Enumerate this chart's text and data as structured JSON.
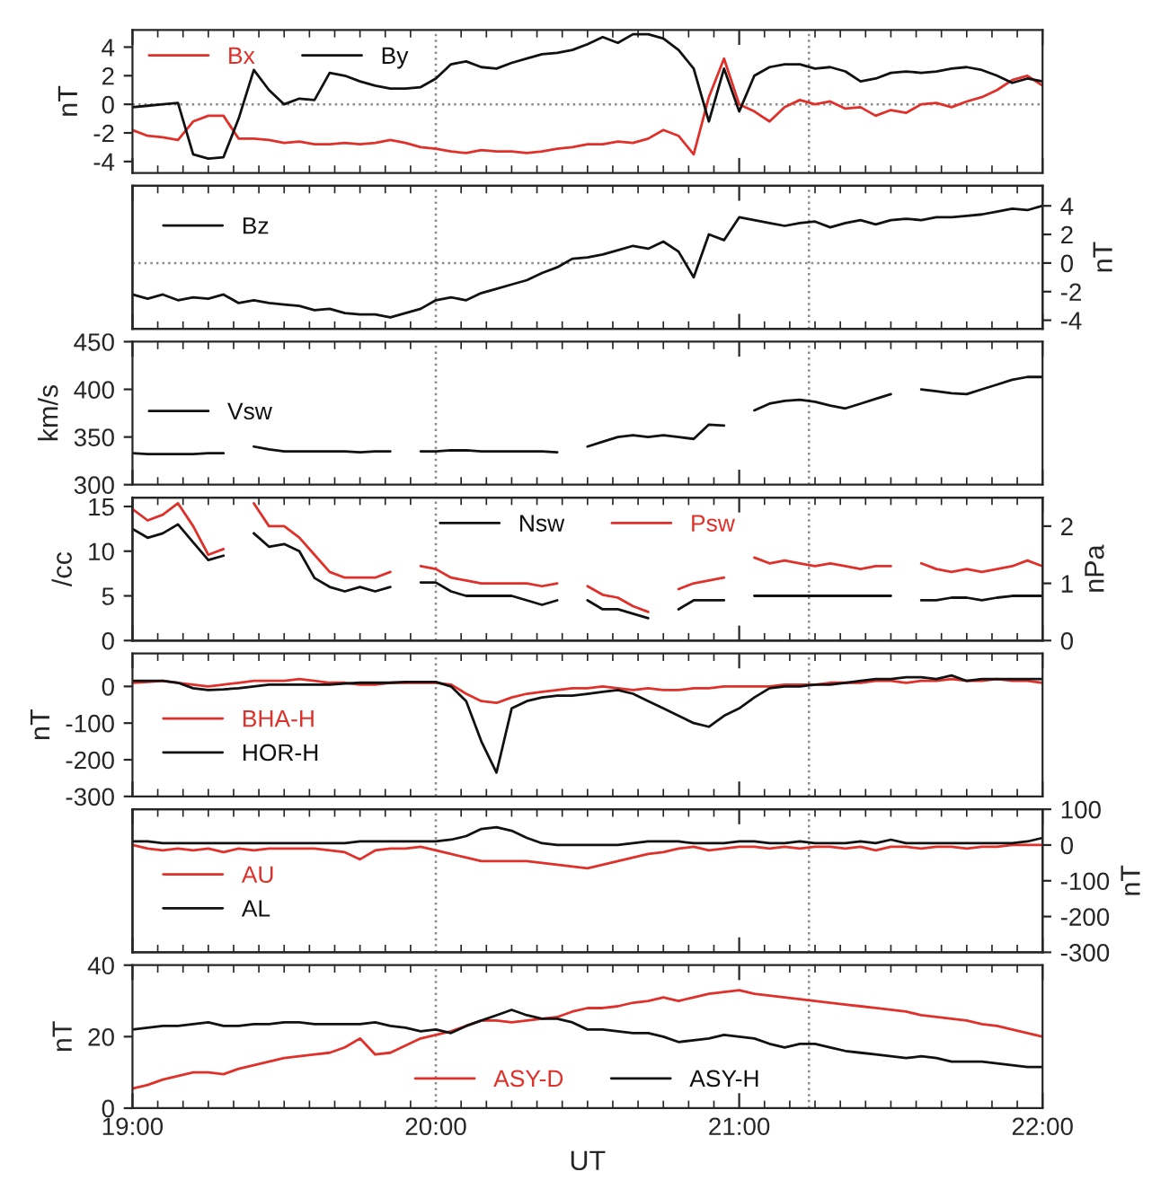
{
  "chart_data": [
    {
      "type": "line",
      "ylabel": "nT",
      "ylim": [
        -4.8,
        5.2
      ],
      "yticks": [
        -4,
        -2,
        0,
        2,
        4
      ],
      "xlim": [
        19,
        22
      ],
      "xticks": [
        {
          "value": 19,
          "label": null
        },
        {
          "value": 20,
          "label": null
        },
        {
          "value": 21,
          "label": null
        },
        {
          "value": 22,
          "label": null
        }
      ],
      "tick_labels": "y",
      "legend": "top left",
      "x": [
        19,
        19.05,
        19.1,
        19.15,
        19.2,
        19.25,
        19.3,
        19.35,
        19.4,
        19.45,
        19.5,
        19.55,
        19.6,
        19.65,
        19.7,
        19.75,
        19.8,
        19.85,
        19.9,
        19.95,
        20,
        20.05,
        20.1,
        20.15,
        20.2,
        20.25,
        20.3,
        20.35,
        20.4,
        20.45,
        20.5,
        20.55,
        20.6,
        20.65,
        20.7,
        20.75,
        20.8,
        20.85,
        20.9,
        20.95,
        21,
        21.05,
        21.1,
        21.15,
        21.2,
        21.25,
        21.3,
        21.35,
        21.4,
        21.45,
        21.5,
        21.55,
        21.6,
        21.65,
        21.7,
        21.75,
        21.8,
        21.85,
        21.9,
        21.95,
        22
      ],
      "series": [
        {
          "name": "Bx",
          "color": "#e0302a",
          "values": [
            -1.8,
            -2.2,
            -2.3,
            -2.5,
            -1.2,
            -0.8,
            -0.8,
            -2.4,
            -2.4,
            -2.5,
            -2.7,
            -2.6,
            -2.8,
            -2.8,
            -2.7,
            -2.8,
            -2.7,
            -2.5,
            -2.7,
            -3.0,
            -3.1,
            -3.3,
            -3.4,
            -3.2,
            -3.3,
            -3.3,
            -3.4,
            -3.3,
            -3.1,
            -3.0,
            -2.8,
            -2.8,
            -2.6,
            -2.7,
            -2.4,
            -1.8,
            -2.2,
            -3.5,
            0.5,
            3.2,
            0,
            -0.5,
            -1.2,
            -0.2,
            0.3,
            0,
            0.2,
            -0.3,
            -0.2,
            -0.8,
            -0.4,
            -0.6,
            0,
            0.1,
            -0.2,
            0.2,
            0.5,
            1.0,
            1.7,
            2.0,
            1.3
          ]
        },
        {
          "name": "By",
          "color": "#111111",
          "values": [
            -0.2,
            -0.1,
            0,
            0.1,
            -3.5,
            -3.8,
            -3.7,
            -1.0,
            2.4,
            1.0,
            0,
            0.4,
            0.3,
            2.2,
            2.0,
            1.6,
            1.3,
            1.1,
            1.1,
            1.2,
            1.8,
            2.8,
            3.0,
            2.6,
            2.5,
            2.9,
            3.2,
            3.5,
            3.6,
            3.8,
            4.2,
            4.7,
            4.3,
            4.9,
            4.9,
            4.6,
            3.8,
            2.5,
            -1.2,
            2.5,
            -0.5,
            2.0,
            2.6,
            2.8,
            2.8,
            2.5,
            2.6,
            2.3,
            1.6,
            1.8,
            2.2,
            2.3,
            2.2,
            2.3,
            2.5,
            2.6,
            2.4,
            2.0,
            1.5,
            1.8,
            1.6
          ]
        }
      ],
      "ref_lines": [
        {
          "axis": "x",
          "value": 20,
          "color": "#8a8a8a",
          "line_style": "dotted"
        },
        {
          "axis": "x",
          "value": 21.23,
          "color": "#8a8a8a",
          "line_style": "dotted"
        },
        {
          "axis": "y",
          "value": 0,
          "color": "#8a8a8a",
          "line_style": "dotted"
        }
      ]
    },
    {
      "type": "line",
      "y2label": "nT",
      "y2lim": [
        -4.6,
        5.4
      ],
      "y2ticks": [
        -4,
        -2,
        0,
        2,
        4
      ],
      "xlim": [
        19,
        22
      ],
      "xticks": [
        {
          "value": 19,
          "label": null
        },
        {
          "value": 20,
          "label": null
        },
        {
          "value": 21,
          "label": null
        },
        {
          "value": 22,
          "label": null
        }
      ],
      "tick_labels": "y",
      "legend": "top left",
      "x": [
        19,
        19.05,
        19.1,
        19.15,
        19.2,
        19.25,
        19.3,
        19.35,
        19.4,
        19.45,
        19.5,
        19.55,
        19.6,
        19.65,
        19.7,
        19.75,
        19.8,
        19.85,
        19.9,
        19.95,
        20,
        20.05,
        20.1,
        20.15,
        20.2,
        20.25,
        20.3,
        20.35,
        20.4,
        20.45,
        20.5,
        20.55,
        20.6,
        20.65,
        20.7,
        20.75,
        20.8,
        20.85,
        20.9,
        20.95,
        21,
        21.05,
        21.1,
        21.15,
        21.2,
        21.25,
        21.3,
        21.35,
        21.4,
        21.45,
        21.5,
        21.55,
        21.6,
        21.65,
        21.7,
        21.75,
        21.8,
        21.85,
        21.9,
        21.95,
        22
      ],
      "series": [
        {
          "name": "Bz",
          "color": "#111111",
          "axis": "y2",
          "values": [
            -2.2,
            -2.5,
            -2.2,
            -2.6,
            -2.4,
            -2.5,
            -2.2,
            -2.8,
            -2.6,
            -2.8,
            -2.9,
            -3.0,
            -3.3,
            -3.2,
            -3.5,
            -3.6,
            -3.6,
            -3.8,
            -3.5,
            -3.2,
            -2.6,
            -2.4,
            -2.6,
            -2.1,
            -1.8,
            -1.5,
            -1.2,
            -0.7,
            -0.3,
            0.3,
            0.4,
            0.6,
            0.9,
            1.2,
            1.0,
            1.5,
            0.8,
            -1.0,
            2.0,
            1.6,
            3.2,
            3.0,
            2.8,
            2.6,
            2.8,
            2.9,
            2.5,
            2.8,
            3.0,
            2.7,
            3.0,
            3.1,
            3.0,
            3.2,
            3.2,
            3.3,
            3.4,
            3.6,
            3.8,
            3.7,
            4.0
          ]
        }
      ],
      "ref_lines": [
        {
          "axis": "x",
          "value": 20,
          "color": "#8a8a8a",
          "line_style": "dotted"
        },
        {
          "axis": "x",
          "value": 21.23,
          "color": "#8a8a8a",
          "line_style": "dotted"
        },
        {
          "axis": "y2",
          "value": 0,
          "color": "#8a8a8a",
          "line_style": "dotted"
        }
      ]
    },
    {
      "type": "line",
      "ylabel": "km/s",
      "ylim": [
        300,
        450
      ],
      "yticks": [
        300,
        350,
        400,
        450
      ],
      "xlim": [
        19,
        22
      ],
      "xticks": [
        {
          "value": 19,
          "label": null
        },
        {
          "value": 20,
          "label": null
        },
        {
          "value": 21,
          "label": null
        },
        {
          "value": 22,
          "label": null
        }
      ],
      "tick_labels": "y",
      "legend": "left",
      "x": [
        19,
        19.05,
        19.1,
        19.15,
        19.2,
        19.25,
        19.3,
        19.35,
        19.4,
        19.45,
        19.5,
        19.55,
        19.6,
        19.65,
        19.7,
        19.75,
        19.8,
        19.85,
        19.9,
        19.95,
        20,
        20.05,
        20.1,
        20.15,
        20.2,
        20.25,
        20.3,
        20.35,
        20.4,
        20.45,
        20.5,
        20.55,
        20.6,
        20.65,
        20.7,
        20.75,
        20.8,
        20.85,
        20.9,
        20.95,
        21,
        21.05,
        21.1,
        21.15,
        21.2,
        21.25,
        21.3,
        21.35,
        21.4,
        21.45,
        21.5,
        21.55,
        21.6,
        21.65,
        21.7,
        21.75,
        21.8,
        21.85,
        21.9,
        21.95,
        22
      ],
      "series": [
        {
          "name": "Vsw",
          "color": "#111111",
          "values": [
            333,
            332,
            332,
            332,
            332,
            333,
            333,
            null,
            340,
            337,
            335,
            335,
            335,
            335,
            335,
            334,
            335,
            335,
            null,
            335,
            335,
            336,
            336,
            335,
            335,
            335,
            335,
            335,
            334,
            null,
            340,
            345,
            350,
            352,
            350,
            352,
            350,
            348,
            363,
            362,
            null,
            378,
            385,
            388,
            389,
            387,
            383,
            380,
            385,
            390,
            395,
            null,
            400,
            398,
            396,
            395,
            400,
            405,
            410,
            413,
            413
          ]
        }
      ],
      "ref_lines": [
        {
          "axis": "x",
          "value": 20,
          "color": "#8a8a8a",
          "line_style": "dotted"
        },
        {
          "axis": "x",
          "value": 21.23,
          "color": "#8a8a8a",
          "line_style": "dotted"
        }
      ]
    },
    {
      "type": "line",
      "ylabel": "/cc",
      "ylim": [
        0,
        16
      ],
      "yticks": [
        0,
        5,
        10,
        15
      ],
      "y2label": "nPa",
      "y2lim": [
        0,
        2.5
      ],
      "y2ticks": [
        0,
        1,
        2
      ],
      "xlim": [
        19,
        22
      ],
      "xticks": [
        {
          "value": 19,
          "label": null
        },
        {
          "value": 20,
          "label": null
        },
        {
          "value": 21,
          "label": null
        },
        {
          "value": 22,
          "label": null
        }
      ],
      "tick_labels": "y",
      "legend": "top",
      "x": [
        19,
        19.05,
        19.1,
        19.15,
        19.2,
        19.25,
        19.3,
        19.35,
        19.4,
        19.45,
        19.5,
        19.55,
        19.6,
        19.65,
        19.7,
        19.75,
        19.8,
        19.85,
        19.9,
        19.95,
        20,
        20.05,
        20.1,
        20.15,
        20.2,
        20.25,
        20.3,
        20.35,
        20.4,
        20.45,
        20.5,
        20.55,
        20.6,
        20.65,
        20.7,
        20.75,
        20.8,
        20.85,
        20.9,
        20.95,
        21,
        21.05,
        21.1,
        21.15,
        21.2,
        21.25,
        21.3,
        21.35,
        21.4,
        21.45,
        21.5,
        21.55,
        21.6,
        21.65,
        21.7,
        21.75,
        21.8,
        21.85,
        21.9,
        21.95,
        22
      ],
      "series": [
        {
          "name": "Nsw",
          "color": "#111111",
          "values": [
            12.5,
            11.5,
            12,
            13,
            11,
            9,
            9.5,
            null,
            12,
            10.5,
            10.8,
            10,
            7,
            6,
            5.5,
            6,
            5.5,
            6,
            null,
            6.5,
            6.5,
            5.5,
            5,
            5,
            5,
            5,
            4.5,
            4,
            4.5,
            null,
            4.5,
            3.5,
            3.5,
            3,
            2.5,
            null,
            3.5,
            4.5,
            4.5,
            4.5,
            null,
            5,
            5,
            5,
            5,
            5,
            5,
            5,
            5,
            5,
            5,
            null,
            4.5,
            4.5,
            4.8,
            4.8,
            4.5,
            4.8,
            5,
            5,
            5
          ]
        },
        {
          "name": "Psw",
          "color": "#e0302a",
          "axis": "y2",
          "values": [
            2.3,
            2.1,
            2.2,
            2.4,
            2.0,
            1.5,
            1.6,
            null,
            2.4,
            2.0,
            2.0,
            1.8,
            1.5,
            1.2,
            1.1,
            1.1,
            1.1,
            1.2,
            null,
            1.3,
            1.25,
            1.1,
            1.05,
            1.0,
            1.0,
            1.0,
            1.0,
            0.95,
            1.0,
            null,
            0.95,
            0.8,
            0.75,
            0.6,
            0.5,
            null,
            0.9,
            1.0,
            1.05,
            1.1,
            null,
            1.45,
            1.35,
            1.4,
            1.35,
            1.3,
            1.35,
            1.3,
            1.25,
            1.3,
            1.3,
            null,
            1.35,
            1.25,
            1.2,
            1.25,
            1.2,
            1.25,
            1.3,
            1.4,
            1.3
          ]
        }
      ],
      "ref_lines": [
        {
          "axis": "x",
          "value": 20,
          "color": "#8a8a8a",
          "line_style": "dotted"
        },
        {
          "axis": "x",
          "value": 21.23,
          "color": "#8a8a8a",
          "line_style": "dotted"
        }
      ]
    },
    {
      "type": "line",
      "ylabel": "nT",
      "ylim": [
        -300,
        90
      ],
      "yticks": [
        -300,
        -200,
        -100,
        0
      ],
      "xlim": [
        19,
        22
      ],
      "xticks": [
        {
          "value": 19,
          "label": null
        },
        {
          "value": 20,
          "label": null
        },
        {
          "value": 21,
          "label": null
        },
        {
          "value": 22,
          "label": null
        }
      ],
      "tick_labels": "y",
      "legend": "bottom left",
      "x": [
        19,
        19.05,
        19.1,
        19.15,
        19.2,
        19.25,
        19.3,
        19.35,
        19.4,
        19.45,
        19.5,
        19.55,
        19.6,
        19.65,
        19.7,
        19.75,
        19.8,
        19.85,
        19.9,
        19.95,
        20,
        20.05,
        20.1,
        20.15,
        20.2,
        20.25,
        20.3,
        20.35,
        20.4,
        20.45,
        20.5,
        20.55,
        20.6,
        20.65,
        20.7,
        20.75,
        20.8,
        20.85,
        20.9,
        20.95,
        21,
        21.05,
        21.1,
        21.15,
        21.2,
        21.25,
        21.3,
        21.35,
        21.4,
        21.45,
        21.5,
        21.55,
        21.6,
        21.65,
        21.7,
        21.75,
        21.8,
        21.85,
        21.9,
        21.95,
        22
      ],
      "series": [
        {
          "name": "BHA-H",
          "color": "#e0302a",
          "values": [
            10,
            12,
            15,
            10,
            5,
            0,
            5,
            10,
            15,
            15,
            15,
            20,
            15,
            10,
            10,
            5,
            5,
            10,
            10,
            10,
            10,
            5,
            -20,
            -40,
            -45,
            -30,
            -20,
            -15,
            -10,
            -5,
            -5,
            0,
            -5,
            -10,
            -5,
            -10,
            -10,
            -5,
            -5,
            0,
            0,
            0,
            0,
            5,
            5,
            5,
            10,
            10,
            10,
            15,
            15,
            10,
            15,
            15,
            20,
            15,
            15,
            20,
            15,
            15,
            10
          ]
        },
        {
          "name": "HOR-H",
          "color": "#111111",
          "values": [
            15,
            15,
            15,
            10,
            -5,
            -10,
            -8,
            -5,
            0,
            5,
            5,
            5,
            5,
            5,
            8,
            10,
            10,
            10,
            12,
            12,
            12,
            0,
            -40,
            -150,
            -235,
            -60,
            -40,
            -30,
            -25,
            -25,
            -20,
            -15,
            -10,
            -20,
            -40,
            -60,
            -80,
            -100,
            -110,
            -80,
            -60,
            -30,
            -5,
            0,
            0,
            5,
            5,
            10,
            15,
            20,
            20,
            25,
            25,
            20,
            30,
            15,
            20,
            20,
            20,
            20,
            20
          ]
        }
      ],
      "ref_lines": [
        {
          "axis": "x",
          "value": 20,
          "color": "#8a8a8a",
          "line_style": "dotted"
        },
        {
          "axis": "x",
          "value": 21.23,
          "color": "#8a8a8a",
          "line_style": "dotted"
        }
      ]
    },
    {
      "type": "line",
      "y2label": "nT",
      "y2lim": [
        -300,
        100
      ],
      "y2ticks": [
        -300,
        -200,
        -100,
        0,
        100
      ],
      "xlim": [
        19,
        22
      ],
      "xticks": [
        {
          "value": 19,
          "label": null
        },
        {
          "value": 20,
          "label": null
        },
        {
          "value": 21,
          "label": null
        },
        {
          "value": 22,
          "label": null
        }
      ],
      "tick_labels": "y",
      "legend": "bottom left",
      "x": [
        19,
        19.05,
        19.1,
        19.15,
        19.2,
        19.25,
        19.3,
        19.35,
        19.4,
        19.45,
        19.5,
        19.55,
        19.6,
        19.65,
        19.7,
        19.75,
        19.8,
        19.85,
        19.9,
        19.95,
        20,
        20.05,
        20.1,
        20.15,
        20.2,
        20.25,
        20.3,
        20.35,
        20.4,
        20.45,
        20.5,
        20.55,
        20.6,
        20.65,
        20.7,
        20.75,
        20.8,
        20.85,
        20.9,
        20.95,
        21,
        21.05,
        21.1,
        21.15,
        21.2,
        21.25,
        21.3,
        21.35,
        21.4,
        21.45,
        21.5,
        21.55,
        21.6,
        21.65,
        21.7,
        21.75,
        21.8,
        21.85,
        21.9,
        21.95,
        22
      ],
      "series": [
        {
          "name": "AU",
          "color": "#e0302a",
          "axis": "y2",
          "values": [
            0,
            -10,
            -15,
            -10,
            -15,
            -10,
            -20,
            -10,
            -15,
            -10,
            -10,
            -10,
            -10,
            -15,
            -20,
            -40,
            -15,
            -10,
            -10,
            -5,
            -15,
            -25,
            -35,
            -45,
            -45,
            -45,
            -45,
            -50,
            -55,
            -60,
            -65,
            -55,
            -45,
            -35,
            -25,
            -20,
            -10,
            -5,
            -15,
            -10,
            -5,
            -5,
            -10,
            -5,
            -10,
            -5,
            -5,
            -10,
            -5,
            -15,
            -5,
            -5,
            -10,
            -5,
            -5,
            -10,
            -5,
            -5,
            0,
            0,
            0
          ]
        },
        {
          "name": "AL",
          "color": "#111111",
          "axis": "y2",
          "values": [
            10,
            10,
            5,
            5,
            5,
            5,
            5,
            5,
            5,
            5,
            5,
            5,
            5,
            5,
            5,
            10,
            10,
            10,
            10,
            10,
            10,
            15,
            25,
            45,
            50,
            40,
            20,
            5,
            0,
            0,
            0,
            0,
            0,
            5,
            10,
            10,
            10,
            5,
            5,
            5,
            10,
            10,
            5,
            5,
            10,
            5,
            5,
            5,
            10,
            5,
            15,
            5,
            5,
            5,
            5,
            5,
            5,
            5,
            5,
            10,
            20
          ]
        }
      ],
      "ref_lines": [
        {
          "axis": "x",
          "value": 20,
          "color": "#8a8a8a",
          "line_style": "dotted"
        },
        {
          "axis": "x",
          "value": 21.23,
          "color": "#8a8a8a",
          "line_style": "dotted"
        }
      ]
    },
    {
      "type": "line",
      "ylabel": "nT",
      "xlabel": "UT",
      "ylim": [
        0,
        40
      ],
      "yticks": [
        0,
        20,
        40
      ],
      "xlim": [
        19,
        22
      ],
      "xticks": [
        {
          "value": 19,
          "label": "19:00"
        },
        {
          "value": 20,
          "label": "20:00"
        },
        {
          "value": 21,
          "label": "21:00"
        },
        {
          "value": 22,
          "label": "22:00"
        }
      ],
      "legend": "bottom",
      "x": [
        19,
        19.05,
        19.1,
        19.15,
        19.2,
        19.25,
        19.3,
        19.35,
        19.4,
        19.45,
        19.5,
        19.55,
        19.6,
        19.65,
        19.7,
        19.75,
        19.8,
        19.85,
        19.9,
        19.95,
        20,
        20.05,
        20.1,
        20.15,
        20.2,
        20.25,
        20.3,
        20.35,
        20.4,
        20.45,
        20.5,
        20.55,
        20.6,
        20.65,
        20.7,
        20.75,
        20.8,
        20.85,
        20.9,
        20.95,
        21,
        21.05,
        21.1,
        21.15,
        21.2,
        21.25,
        21.3,
        21.35,
        21.4,
        21.45,
        21.5,
        21.55,
        21.6,
        21.65,
        21.7,
        21.75,
        21.8,
        21.85,
        21.9,
        21.95,
        22
      ],
      "series": [
        {
          "name": "ASY-D",
          "color": "#e0302a",
          "values": [
            5.5,
            6.5,
            8,
            9,
            10,
            10,
            9.5,
            11,
            12,
            13,
            14,
            14.5,
            15,
            15.5,
            17,
            19.5,
            15,
            15.5,
            17.5,
            19.5,
            20.5,
            21.5,
            23,
            24.5,
            24.5,
            24,
            24.5,
            25,
            25.5,
            27,
            28,
            28,
            28.5,
            29.5,
            30,
            31,
            30,
            31,
            32,
            32.5,
            33,
            32,
            31.5,
            31,
            30.5,
            30,
            29.5,
            29,
            28.5,
            28,
            27.5,
            27,
            26,
            25.5,
            25,
            24.5,
            23.5,
            23,
            22,
            21,
            20
          ]
        },
        {
          "name": "ASY-H",
          "color": "#111111",
          "values": [
            22,
            22.5,
            23,
            23,
            23.5,
            24,
            23,
            23,
            23.5,
            23.5,
            24,
            24,
            23.5,
            23.5,
            23.5,
            23.5,
            24,
            23,
            22.5,
            21.5,
            22,
            21,
            23,
            24.5,
            26,
            27.5,
            26,
            25,
            25,
            24,
            22,
            22,
            21.5,
            21,
            21,
            20,
            18.5,
            19,
            19.5,
            20.5,
            20,
            19.5,
            18,
            17,
            18,
            18,
            17,
            16,
            15.5,
            15,
            14.5,
            14,
            14.5,
            14,
            13,
            13,
            13,
            12.5,
            12,
            11.5,
            11.5
          ]
        }
      ],
      "ref_lines": [
        {
          "axis": "x",
          "value": 20,
          "color": "#8a8a8a",
          "line_style": "dotted"
        },
        {
          "axis": "x",
          "value": 21.23,
          "color": "#8a8a8a",
          "line_style": "dotted"
        }
      ]
    }
  ]
}
